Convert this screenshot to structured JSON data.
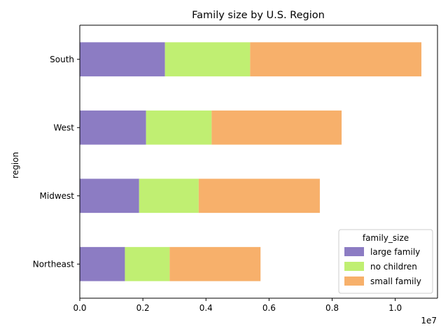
{
  "chart_data": {
    "type": "bar",
    "orientation": "horizontal",
    "stacked": true,
    "title": "Family size by U.S. Region",
    "xlabel": "",
    "ylabel": "region",
    "x_scale_label": "1e7",
    "xlim": [
      0,
      11340000
    ],
    "xticks": [
      0,
      2000000,
      4000000,
      6000000,
      8000000,
      10000000
    ],
    "xtick_labels": [
      "0.0",
      "0.2",
      "0.4",
      "0.6",
      "0.8",
      "1.0"
    ],
    "categories": [
      "Northeast",
      "Midwest",
      "West",
      "South"
    ],
    "series": [
      {
        "name": "large family",
        "color": "#8c7cc3",
        "values": [
          1430000,
          1880000,
          2100000,
          2700000
        ]
      },
      {
        "name": "no children",
        "color": "#c0ef72",
        "values": [
          1420000,
          1890000,
          2080000,
          2700000
        ]
      },
      {
        "name": "small family",
        "color": "#f7b06b",
        "values": [
          2880000,
          3840000,
          4120000,
          5430000
        ]
      }
    ],
    "legend": {
      "title": "family_size",
      "position": "lower-right"
    },
    "grid": false
  }
}
